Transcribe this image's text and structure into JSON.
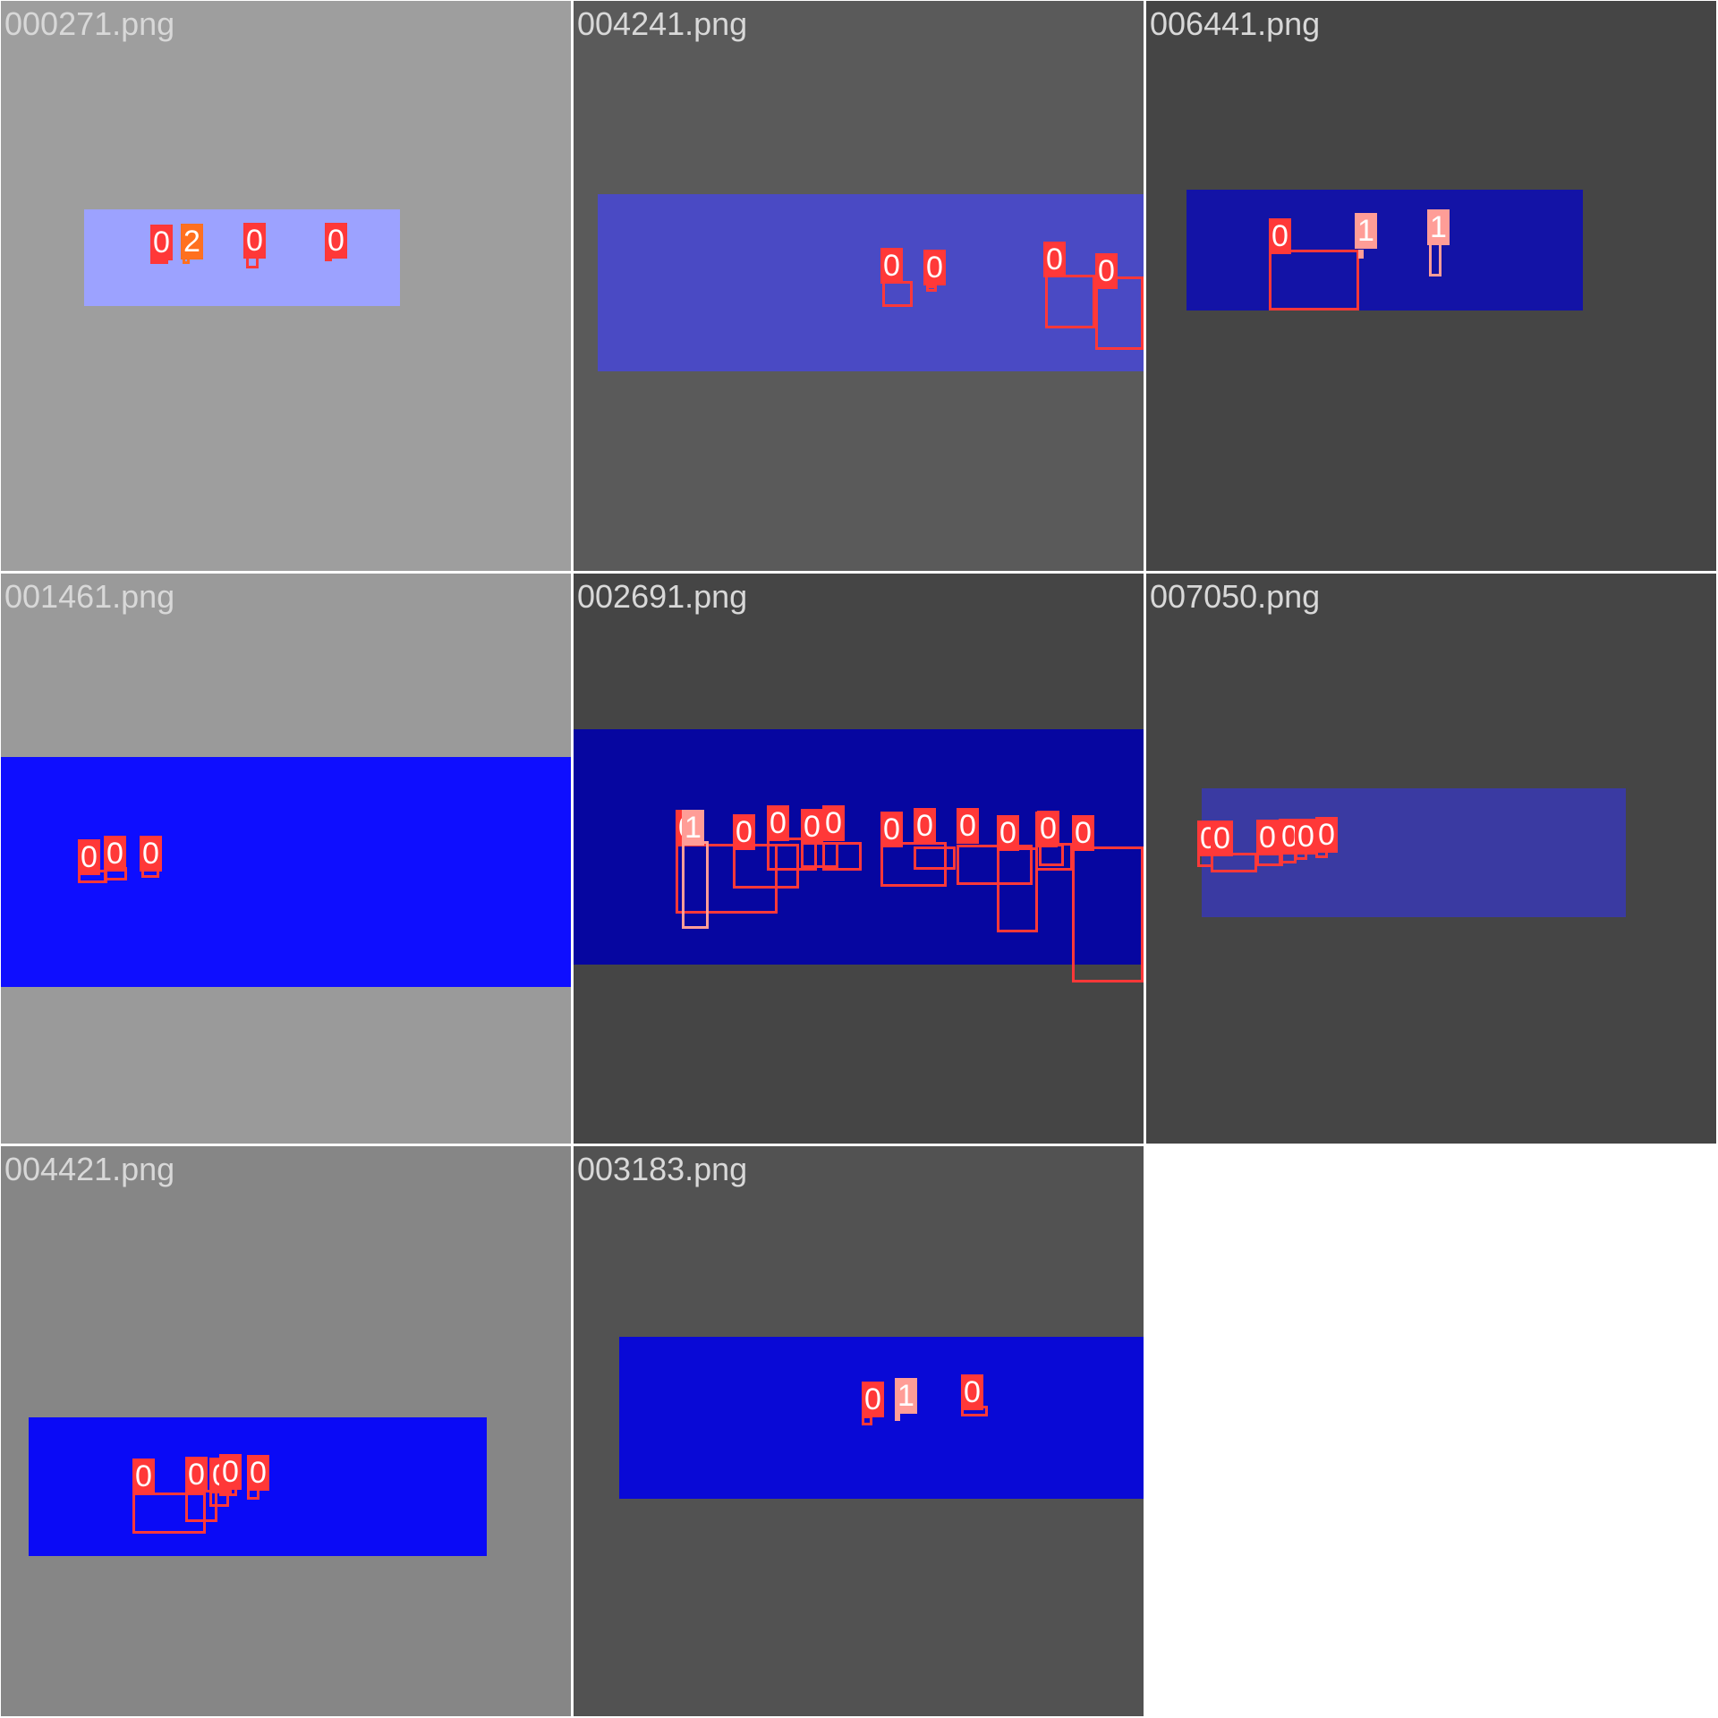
{
  "tiles": [
    {
      "filename": "000271.png",
      "background": "#9e9e9e",
      "strip_color": "#9ca2ff",
      "detections": [
        {
          "class_label": "0"
        },
        {
          "class_label": "2"
        },
        {
          "class_label": "0"
        },
        {
          "class_label": "0"
        }
      ]
    },
    {
      "filename": "004241.png",
      "background": "#5a5a5a",
      "strip_color": "#4a4ac4",
      "detections": [
        {
          "class_label": "0"
        },
        {
          "class_label": "0"
        },
        {
          "class_label": "0"
        },
        {
          "class_label": "0"
        }
      ]
    },
    {
      "filename": "006441.png",
      "background": "#454545",
      "strip_color": "#1313a6",
      "detections": [
        {
          "class_label": "0"
        },
        {
          "class_label": "1"
        },
        {
          "class_label": "1"
        }
      ]
    },
    {
      "filename": "001461.png",
      "background": "#9a9a9a",
      "strip_color": "#0e0eff",
      "detections": [
        {
          "class_label": "0"
        },
        {
          "class_label": "0"
        },
        {
          "class_label": "0"
        }
      ]
    },
    {
      "filename": "002691.png",
      "background": "#454545",
      "strip_color": "#0606a0",
      "detections": [
        {
          "class_label": "0"
        },
        {
          "class_label": "1"
        },
        {
          "class_label": "0"
        },
        {
          "class_label": "0"
        },
        {
          "class_label": "0"
        },
        {
          "class_label": "0"
        },
        {
          "class_label": "0"
        },
        {
          "class_label": "0"
        },
        {
          "class_label": "0"
        },
        {
          "class_label": "0"
        },
        {
          "class_label": "0"
        },
        {
          "class_label": "0"
        },
        {
          "class_label": "0"
        }
      ]
    },
    {
      "filename": "007050.png",
      "background": "#454545",
      "strip_color": "#3a3aa2",
      "detections": [
        {
          "class_label": "0"
        },
        {
          "class_label": "0"
        },
        {
          "class_label": "0"
        },
        {
          "class_label": "0"
        },
        {
          "class_label": "0"
        },
        {
          "class_label": "0"
        }
      ]
    },
    {
      "filename": "004421.png",
      "background": "#868686",
      "strip_color": "#0a0af6",
      "detections": [
        {
          "class_label": "0"
        },
        {
          "class_label": "0"
        },
        {
          "class_label": "0"
        },
        {
          "class_label": "0"
        },
        {
          "class_label": "0"
        }
      ]
    },
    {
      "filename": "003183.png",
      "background": "#525252",
      "strip_color": "#0909d6",
      "detections": [
        {
          "class_label": "0"
        },
        {
          "class_label": "1"
        },
        {
          "class_label": "0"
        }
      ]
    }
  ],
  "class_colors": {
    "0": "#ff3838",
    "1": "#ff9d97",
    "2": "#ff701f"
  },
  "empty_cell_color": "#ffffff"
}
